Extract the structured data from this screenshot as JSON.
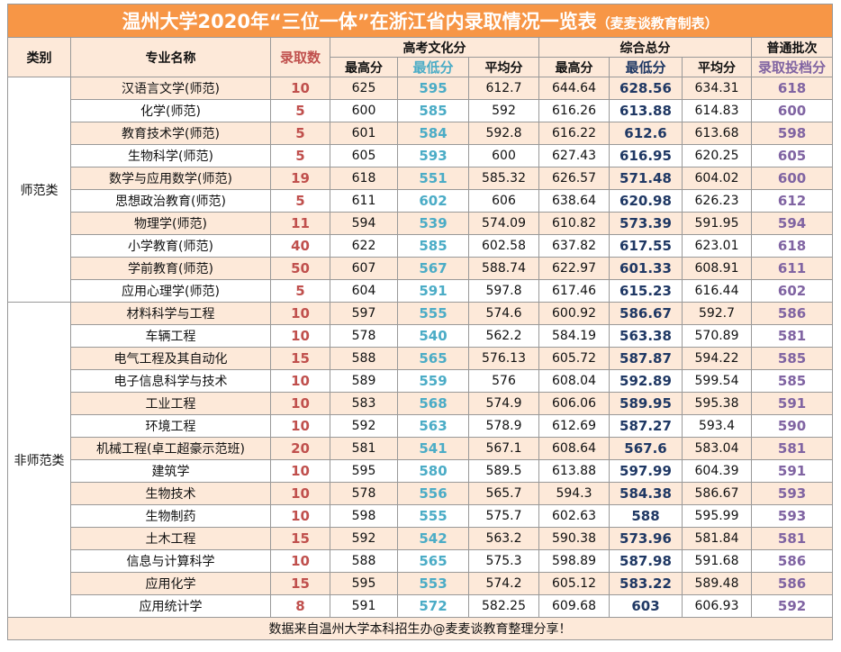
{
  "title": "温州大学2020年“三位一体”在浙江省内录取情况一览表",
  "title_note": "（麦麦谈教育制表）",
  "header": {
    "category": "类别",
    "major": "专业名称",
    "admitted": "录取数",
    "gaokao": "高考文化分",
    "composite": "综合总分",
    "batch": "普通批次",
    "gaokao_cols": [
      "最高分",
      "最低分",
      "平均分"
    ],
    "composite_cols": [
      "最高分",
      "最低分",
      "平均分"
    ],
    "batch_col": "录取投档分"
  },
  "groups": [
    {
      "category": "师范类",
      "rows": [
        [
          "汉语言文学(师范)",
          10,
          625,
          595,
          612.7,
          644.64,
          628.56,
          634.31,
          618
        ],
        [
          "化学(师范)",
          5,
          600,
          585,
          592,
          616.26,
          613.88,
          614.83,
          600
        ],
        [
          "教育技术学(师范)",
          5,
          601,
          584,
          592.8,
          616.22,
          612.6,
          613.68,
          598
        ],
        [
          "生物科学(师范)",
          5,
          605,
          593,
          600,
          627.43,
          616.95,
          620.25,
          605
        ],
        [
          "数学与应用数学(师范)",
          19,
          618,
          551,
          585.32,
          626.57,
          571.48,
          604.02,
          600
        ],
        [
          "思想政治教育(师范)",
          5,
          611,
          602,
          606,
          638.64,
          620.98,
          626.23,
          612
        ],
        [
          "物理学(师范)",
          11,
          594,
          539,
          574.09,
          610.82,
          573.39,
          591.95,
          594
        ],
        [
          "小学教育(师范)",
          40,
          622,
          585,
          602.58,
          637.82,
          617.55,
          623.01,
          618
        ],
        [
          "学前教育(师范)",
          50,
          607,
          567,
          588.74,
          622.97,
          601.33,
          608.91,
          611
        ],
        [
          "应用心理学(师范)",
          5,
          604,
          591,
          597.8,
          617.46,
          615.23,
          616.44,
          602
        ]
      ]
    },
    {
      "category": "非师范类",
      "rows": [
        [
          "材料科学与工程",
          10,
          597,
          555,
          574.6,
          600.92,
          586.67,
          592.7,
          586
        ],
        [
          "车辆工程",
          10,
          578,
          540,
          562.2,
          584.19,
          563.38,
          570.89,
          581
        ],
        [
          "电气工程及其自动化",
          15,
          588,
          565,
          576.13,
          605.72,
          587.87,
          594.22,
          585
        ],
        [
          "电子信息科学与技术",
          10,
          589,
          559,
          576,
          608.04,
          592.89,
          599.54,
          585
        ],
        [
          "工业工程",
          10,
          583,
          568,
          574.9,
          606.06,
          589.95,
          595.38,
          591
        ],
        [
          "环境工程",
          10,
          592,
          563,
          578.9,
          612.69,
          587.27,
          593.4,
          590
        ],
        [
          "机械工程(卓工超豪示范班)",
          20,
          581,
          541,
          567.1,
          608.64,
          567.6,
          583.04,
          581
        ],
        [
          "建筑学",
          10,
          595,
          580,
          589.5,
          613.88,
          597.99,
          604.39,
          591
        ],
        [
          "生物技术",
          10,
          578,
          556,
          565.7,
          594.3,
          584.38,
          586.67,
          593
        ],
        [
          "生物制药",
          10,
          598,
          555,
          575.7,
          602.63,
          588,
          595.99,
          593
        ],
        [
          "土木工程",
          15,
          592,
          542,
          563.2,
          590.38,
          573.96,
          581.84,
          581
        ],
        [
          "信息与计算科学",
          10,
          588,
          565,
          575.3,
          598.89,
          587.98,
          591.68,
          586
        ],
        [
          "应用化学",
          15,
          595,
          553,
          574.2,
          605.12,
          583.22,
          589.48,
          586
        ],
        [
          "应用统计学",
          8,
          591,
          572,
          582.25,
          609.68,
          603,
          606.93,
          592
        ]
      ]
    }
  ],
  "footer": "数据来自温州大学本科招生办@麦麦谈教育整理分享！"
}
